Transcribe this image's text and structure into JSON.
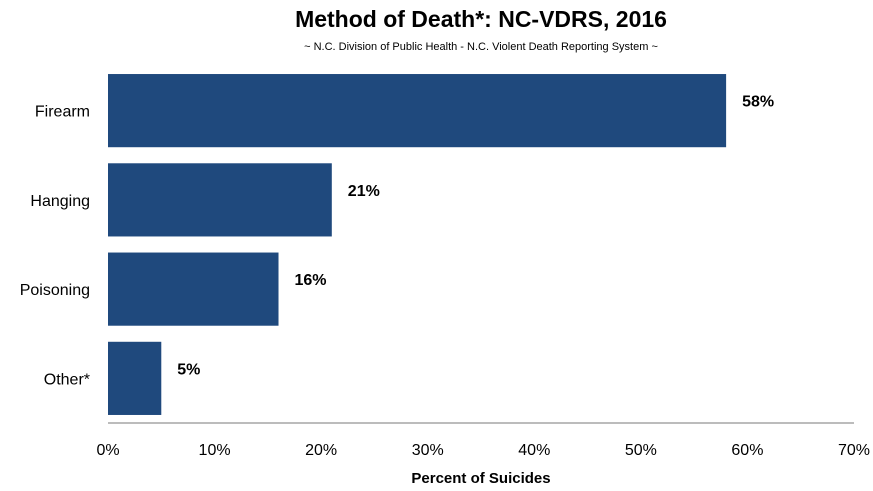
{
  "chart_data": {
    "type": "bar",
    "orientation": "horizontal",
    "title": "Method of Death*: NC-VDRS, 2016",
    "subtitle": "~ N.C. Division of Public Health - N.C. Violent Death Reporting System ~",
    "categories": [
      "Firearm",
      "Hanging",
      "Poisoning",
      "Other*"
    ],
    "values": [
      58,
      21,
      16,
      5
    ],
    "data_labels": [
      "58%",
      "21%",
      "16%",
      "5%"
    ],
    "xlabel": "Percent of Suicides",
    "ylabel": "",
    "xlim": [
      0,
      70
    ],
    "x_ticks": [
      "0%",
      "10%",
      "20%",
      "30%",
      "40%",
      "50%",
      "60%",
      "70%"
    ],
    "grid": false,
    "bar_color": "#1f497d"
  }
}
